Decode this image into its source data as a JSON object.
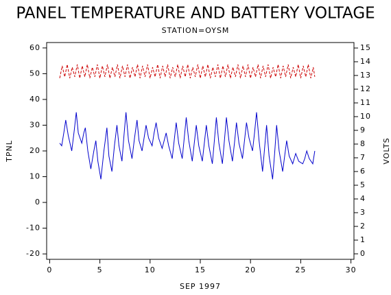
{
  "chart_data": {
    "type": "line",
    "title": "PANEL TEMPERATURE AND BATTERY VOLTAGE",
    "subtitle": "STATION=OYSM",
    "xlabel": "SEP 1997",
    "ylabel": "TPNL",
    "y2label": "VOLTS",
    "xlim": [
      -0.3,
      30.3
    ],
    "ylim": [
      -22.1,
      62.1
    ],
    "y2lim": [
      -0.4,
      15.4
    ],
    "xticks": [
      0,
      5,
      10,
      15,
      20,
      25,
      30
    ],
    "yticks": [
      -20,
      -10,
      0,
      10,
      20,
      30,
      40,
      50,
      60
    ],
    "y2ticks": [
      0,
      1,
      2,
      3,
      4,
      5,
      6,
      7,
      8,
      9,
      10,
      11,
      12,
      13,
      14,
      15
    ],
    "series": [
      {
        "color": "#0000cc",
        "dash": false,
        "x": [
          1.0,
          1.2,
          1.45,
          1.6,
          1.85,
          2.2,
          2.45,
          2.65,
          2.85,
          3.2,
          3.4,
          3.55,
          3.8,
          4.1,
          4.4,
          4.6,
          4.8,
          5.1,
          5.4,
          5.7,
          5.9,
          6.2,
          6.45,
          6.7,
          6.9,
          7.2,
          7.4,
          7.6,
          7.85,
          8.2,
          8.45,
          8.7,
          8.9,
          9.2,
          9.4,
          9.6,
          9.85,
          10.2,
          10.4,
          10.6,
          10.85,
          11.2,
          11.4,
          11.6,
          11.85,
          12.2,
          12.4,
          12.6,
          12.85,
          13.2,
          13.4,
          13.6,
          13.85,
          14.2,
          14.4,
          14.6,
          14.85,
          15.2,
          15.4,
          15.6,
          15.85,
          16.2,
          16.4,
          16.6,
          16.85,
          17.2,
          17.4,
          17.6,
          17.85,
          18.2,
          18.4,
          18.6,
          18.85,
          19.2,
          19.4,
          19.6,
          19.85,
          20.2,
          20.4,
          20.6,
          20.85,
          21.2,
          21.4,
          21.6,
          21.85,
          22.2,
          22.4,
          22.6,
          22.85,
          23.2,
          23.4,
          23.6,
          23.85,
          24.2,
          24.35,
          24.5,
          24.8,
          25.2,
          25.4,
          25.6,
          25.85,
          26.2,
          26.4
        ],
        "values": [
          23,
          22,
          28,
          32,
          26,
          20,
          28,
          35,
          27,
          23,
          27,
          29,
          20,
          13,
          20,
          24,
          16,
          9,
          20,
          29,
          18,
          12,
          22,
          30,
          22,
          16,
          26,
          35,
          24,
          17,
          25,
          32,
          24,
          20,
          25,
          30,
          25,
          22,
          27,
          31,
          25,
          21,
          24,
          27,
          22,
          17,
          24,
          31,
          23,
          17,
          25,
          33,
          24,
          16,
          23,
          30,
          22,
          16,
          23,
          30,
          22,
          15,
          24,
          33,
          23,
          15,
          24,
          33,
          24,
          16,
          23,
          31,
          23,
          17,
          24,
          31,
          25,
          20,
          27,
          35,
          24,
          12,
          21,
          30,
          18,
          9,
          19,
          30,
          20,
          12,
          18,
          24,
          18,
          15,
          17,
          19,
          16,
          15,
          17,
          20,
          17,
          15,
          20
        ]
      },
      {
        "color": "#cc0000",
        "dash": true,
        "axis": "y2",
        "x": [
          1,
          1.25,
          1.5,
          1.75,
          2,
          2.25,
          2.5,
          2.75,
          3,
          3.25,
          3.5,
          3.75,
          4,
          4.25,
          4.5,
          4.75,
          5,
          5.25,
          5.5,
          5.75,
          6,
          6.25,
          6.5,
          6.75,
          7,
          7.25,
          7.5,
          7.75,
          8,
          8.25,
          8.5,
          8.75,
          9,
          9.25,
          9.5,
          9.75,
          10,
          10.25,
          10.5,
          10.75,
          11,
          11.25,
          11.5,
          11.75,
          12,
          12.25,
          12.5,
          12.75,
          13,
          13.25,
          13.5,
          13.75,
          14,
          14.25,
          14.5,
          14.75,
          15,
          15.25,
          15.5,
          15.75,
          16,
          16.25,
          16.5,
          16.75,
          17,
          17.25,
          17.5,
          17.75,
          18,
          18.25,
          18.5,
          18.75,
          19,
          19.25,
          19.5,
          19.75,
          20,
          20.25,
          20.5,
          20.75,
          21,
          21.25,
          21.5,
          21.75,
          22,
          22.25,
          22.5,
          22.75,
          23,
          23.25,
          23.5,
          23.75,
          24,
          24.25,
          24.5,
          24.75,
          25,
          25.25,
          25.5,
          25.75,
          26,
          26.25,
          26.4
        ],
        "values": [
          12.8,
          13.7,
          12.9,
          13.8,
          12.8,
          13.6,
          12.9,
          13.8,
          12.8,
          13.7,
          12.9,
          13.8,
          12.8,
          13.6,
          12.9,
          13.8,
          12.8,
          13.7,
          12.9,
          13.8,
          12.8,
          13.6,
          12.9,
          13.8,
          12.8,
          13.7,
          12.9,
          13.8,
          12.8,
          13.6,
          12.9,
          13.8,
          12.8,
          13.7,
          12.9,
          13.8,
          12.8,
          13.6,
          12.9,
          13.8,
          12.8,
          13.7,
          12.9,
          13.8,
          12.8,
          13.6,
          12.9,
          13.8,
          12.8,
          13.7,
          12.9,
          13.8,
          12.8,
          13.6,
          12.9,
          13.8,
          12.8,
          13.7,
          12.9,
          13.8,
          12.8,
          13.6,
          12.9,
          13.8,
          12.8,
          13.7,
          12.9,
          13.8,
          12.8,
          13.6,
          12.9,
          13.8,
          12.8,
          13.7,
          12.9,
          13.8,
          12.8,
          13.6,
          12.9,
          13.8,
          12.8,
          13.7,
          12.9,
          13.8,
          12.8,
          13.6,
          12.9,
          13.8,
          12.8,
          13.7,
          12.9,
          13.8,
          12.8,
          13.6,
          12.9,
          13.8,
          12.8,
          13.7,
          12.9,
          13.8,
          12.8,
          13.6,
          12.9
        ]
      }
    ]
  }
}
